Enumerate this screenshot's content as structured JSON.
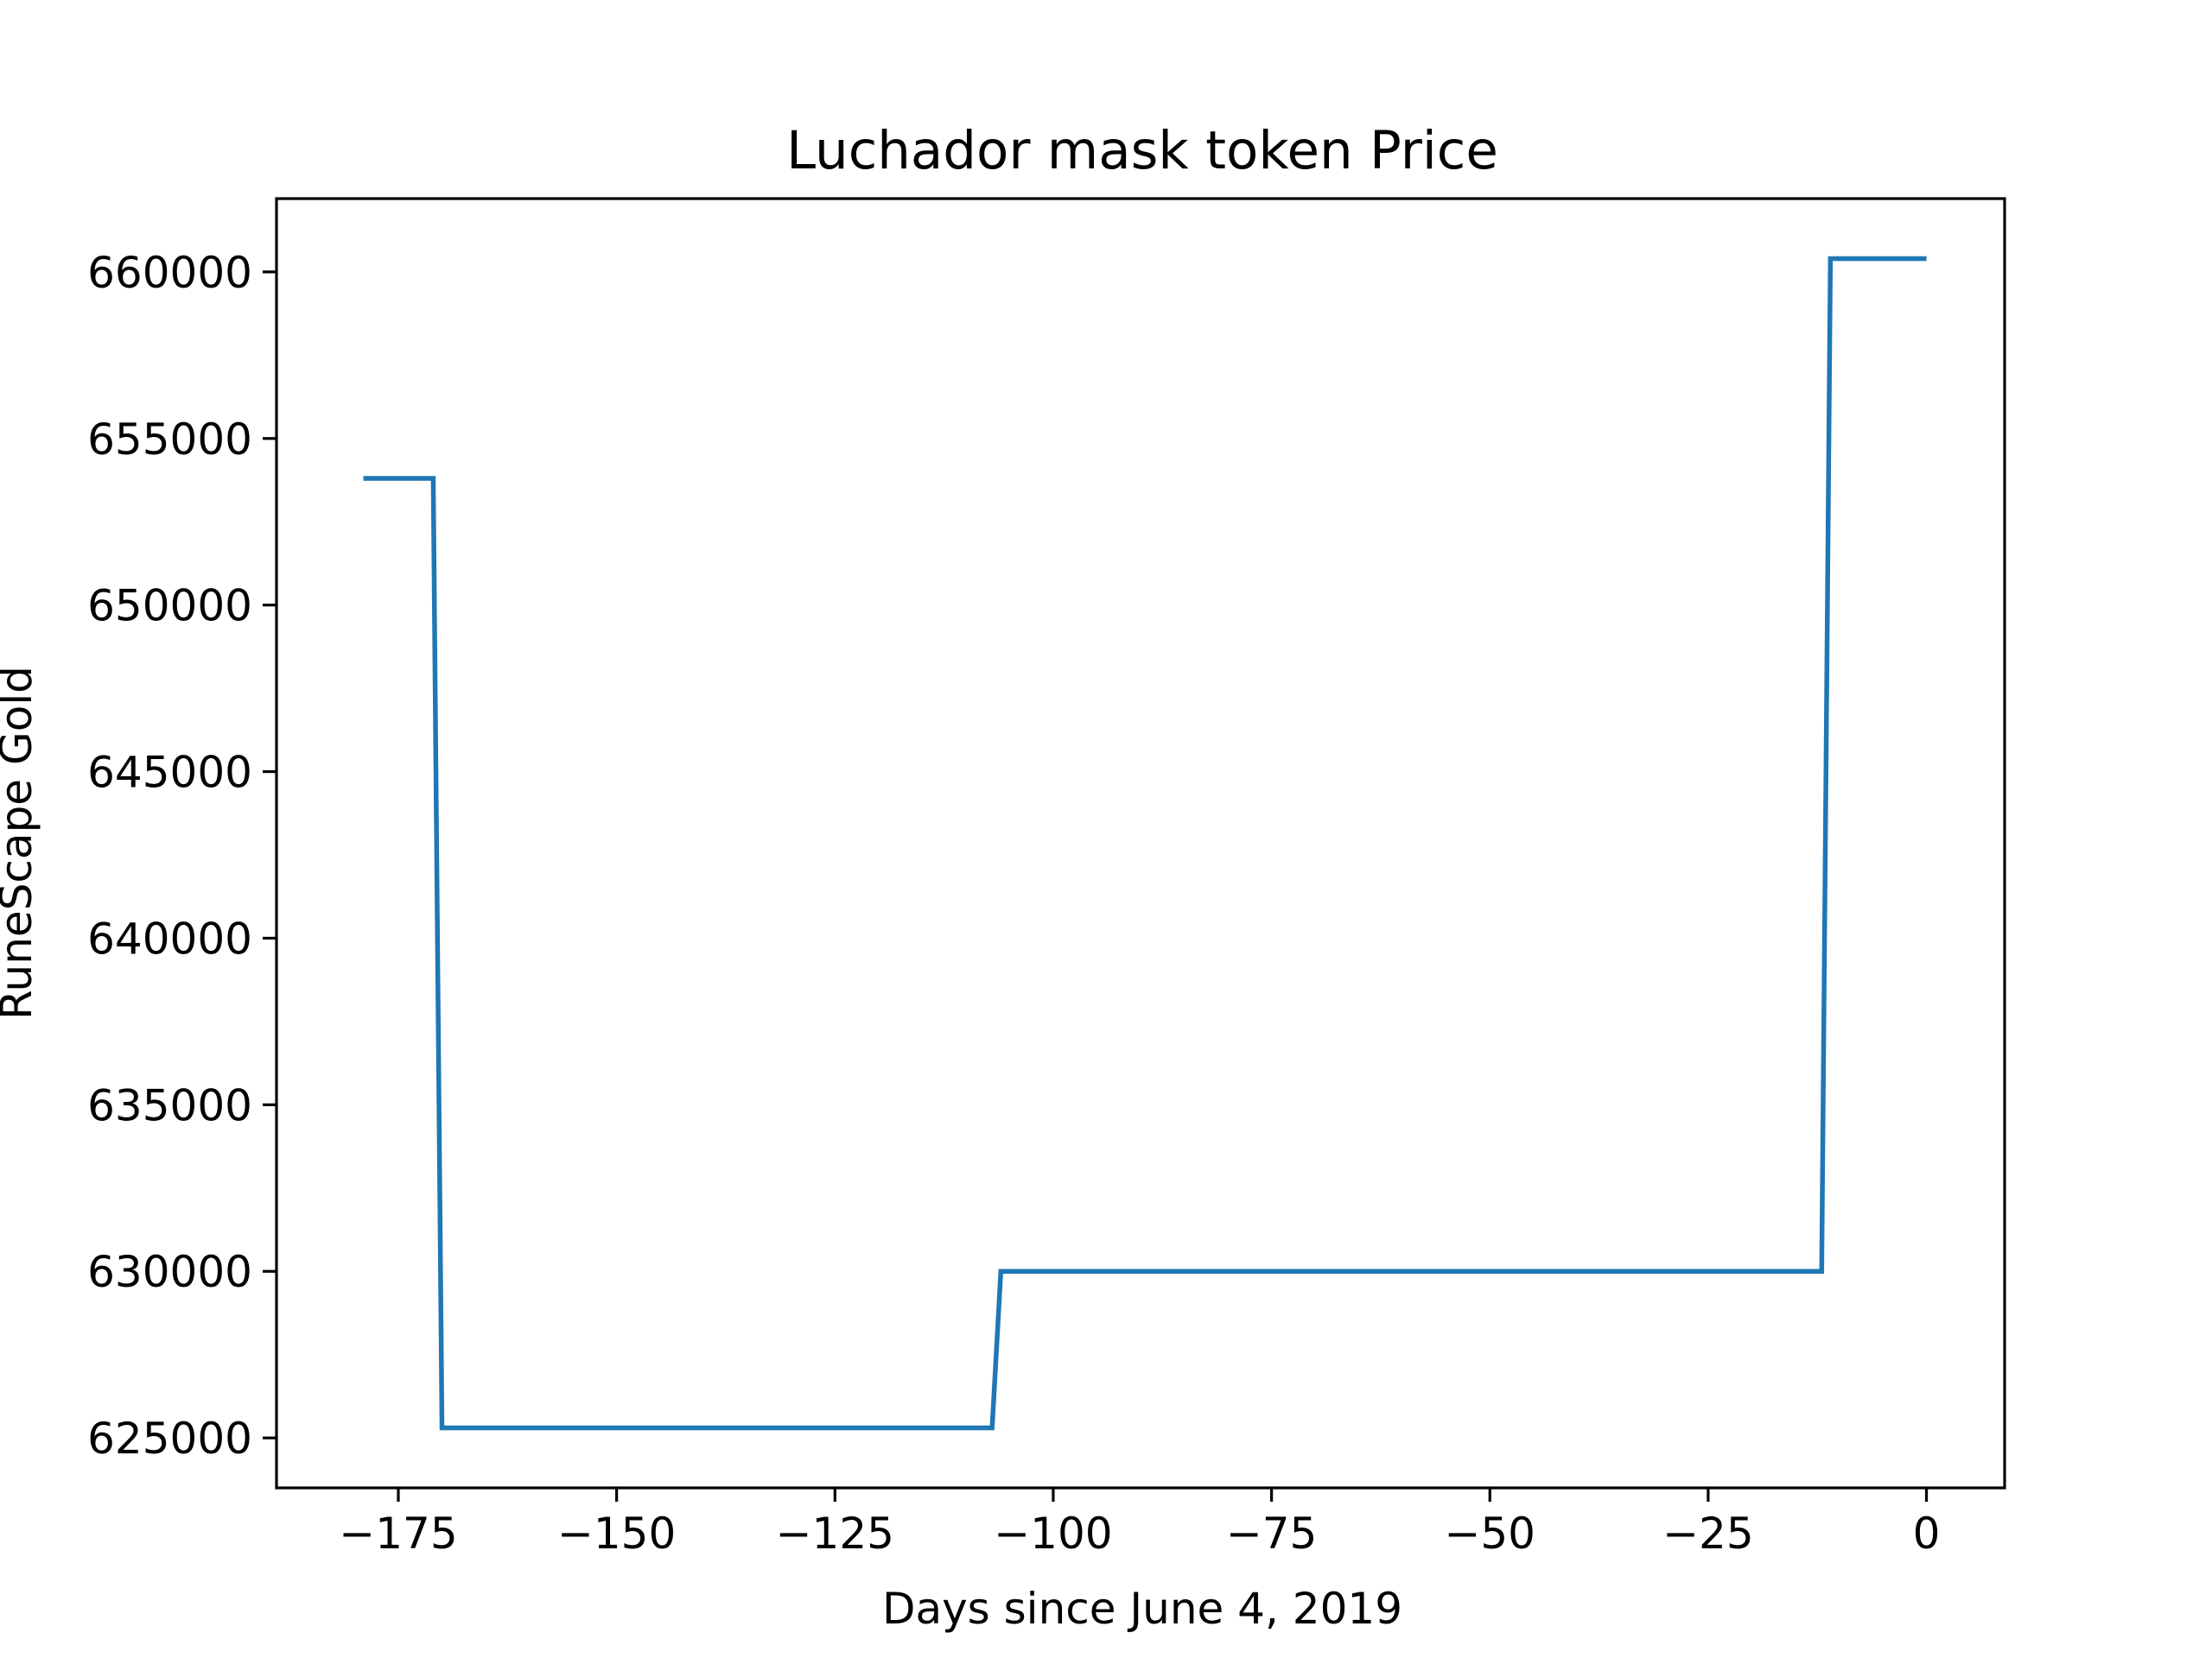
{
  "chart_data": {
    "type": "line",
    "title": "Luchador mask token Price",
    "xlabel": "Days since June 4, 2019",
    "ylabel": "RuneScape Gold",
    "xlim": [
      -188.95,
      8.95
    ],
    "ylim": [
      623500,
      662200
    ],
    "grid": false,
    "x_ticks": [
      {
        "value": -175,
        "label": "−175"
      },
      {
        "value": -150,
        "label": "−150"
      },
      {
        "value": -125,
        "label": "−125"
      },
      {
        "value": -100,
        "label": "−100"
      },
      {
        "value": -75,
        "label": "−75"
      },
      {
        "value": -50,
        "label": "−50"
      },
      {
        "value": -25,
        "label": "−25"
      },
      {
        "value": 0,
        "label": "0"
      }
    ],
    "y_ticks": [
      {
        "value": 625000,
        "label": "625000"
      },
      {
        "value": 630000,
        "label": "630000"
      },
      {
        "value": 635000,
        "label": "635000"
      },
      {
        "value": 640000,
        "label": "640000"
      },
      {
        "value": 645000,
        "label": "645000"
      },
      {
        "value": 650000,
        "label": "650000"
      },
      {
        "value": 655000,
        "label": "655000"
      },
      {
        "value": 660000,
        "label": "660000"
      }
    ],
    "series": [
      {
        "color": "#1f77b4",
        "x": [
          -179,
          -178,
          -177,
          -176,
          -175,
          -174,
          -173,
          -172,
          -171,
          -170,
          -169,
          -168,
          -160,
          -150,
          -140,
          -130,
          -120,
          -110,
          -107,
          -106,
          -105,
          -100,
          -90,
          -80,
          -70,
          -60,
          -50,
          -40,
          -30,
          -20,
          -12,
          -11,
          -10,
          -5,
          0
        ],
        "y": [
          653800,
          653800,
          653800,
          653800,
          653800,
          653800,
          653800,
          653800,
          653800,
          625300,
          625300,
          625300,
          625300,
          625300,
          625300,
          625300,
          625300,
          625300,
          625300,
          630000,
          630000,
          630000,
          630000,
          630000,
          630000,
          630000,
          630000,
          630000,
          630000,
          630000,
          630000,
          660400,
          660400,
          660400,
          660400
        ]
      }
    ]
  }
}
